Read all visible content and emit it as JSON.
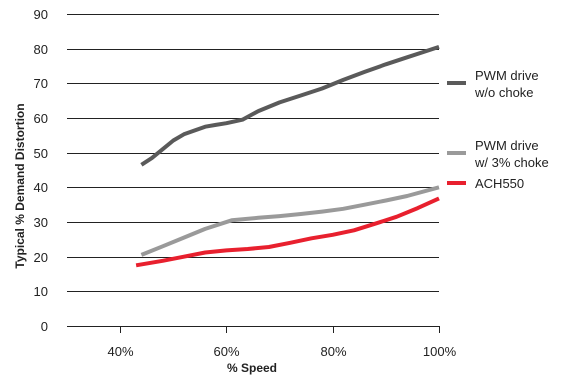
{
  "chart_data": {
    "type": "line",
    "xlabel": "% Speed",
    "ylabel": "Typical % Demand Distortion",
    "xlim": [
      30,
      100
    ],
    "ylim": [
      0,
      90
    ],
    "x_ticks": [
      40,
      60,
      80,
      100
    ],
    "x_tick_labels": [
      "40%",
      "60%",
      "80%",
      "100%"
    ],
    "y_ticks": [
      0,
      10,
      20,
      30,
      40,
      50,
      60,
      70,
      80,
      90
    ],
    "y_tick_labels": [
      "0",
      "10",
      "20",
      "30",
      "40",
      "50",
      "60",
      "70",
      "80",
      "90"
    ],
    "grid": "horizontal",
    "legend_position": "right",
    "series": [
      {
        "name": "PWM drive\nw/o choke",
        "legend_lines": [
          "PWM drive",
          "w/o choke"
        ],
        "color": "#5a5a5a",
        "x": [
          44,
          46,
          48,
          50,
          52,
          56,
          58,
          60,
          63,
          66,
          70,
          74,
          78,
          82,
          86,
          90,
          94,
          98,
          100
        ],
        "y": [
          46.5,
          48.5,
          51,
          53.5,
          55.3,
          57.5,
          58,
          58.5,
          59.5,
          62,
          64.5,
          66.5,
          68.5,
          71,
          73.3,
          75.5,
          77.5,
          79.5,
          80.5
        ]
      },
      {
        "name": "PWM drive\nw/ 3% choke",
        "legend_lines": [
          "PWM drive",
          "w/ 3% choke"
        ],
        "color": "#9a9a9a",
        "x": [
          44,
          48,
          52,
          56,
          61,
          66,
          70,
          74,
          78,
          82,
          86,
          90,
          94,
          100
        ],
        "y": [
          20.5,
          23,
          25.5,
          28,
          30.5,
          31.2,
          31.7,
          32.3,
          33,
          33.8,
          35,
          36.2,
          37.5,
          40
        ]
      },
      {
        "name": "ACH550",
        "legend_lines": [
          "ACH550"
        ],
        "color": "#e8202e",
        "x": [
          43,
          48,
          52,
          56,
          60,
          64,
          68,
          72,
          76,
          80,
          84,
          88,
          92,
          96,
          100
        ],
        "y": [
          17.5,
          18.8,
          20,
          21.2,
          21.8,
          22.2,
          22.8,
          24,
          25.3,
          26.3,
          27.6,
          29.5,
          31.5,
          34,
          36.8
        ]
      }
    ]
  }
}
